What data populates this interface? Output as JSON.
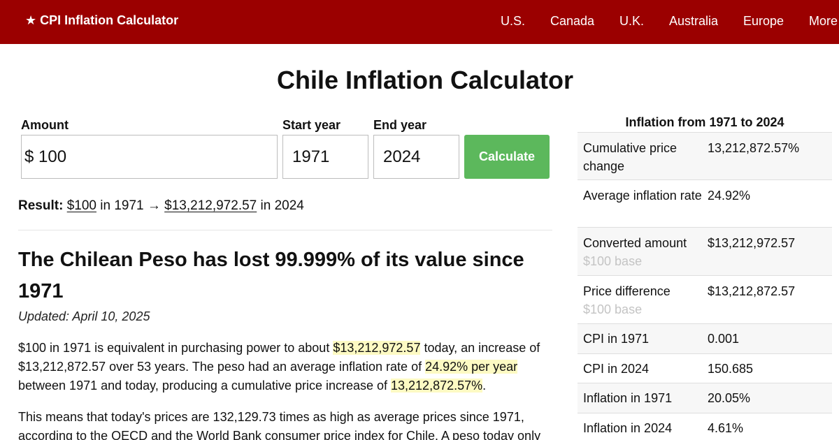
{
  "header": {
    "brand_star": "★",
    "brand": "CPI Inflation Calculator",
    "nav": [
      "U.S.",
      "Canada",
      "U.K.",
      "Australia",
      "Europe",
      "More"
    ]
  },
  "page_title": "Chile Inflation Calculator",
  "form": {
    "amount_label": "Amount",
    "currency_symbol": "$",
    "amount_value": "100",
    "start_label": "Start year",
    "start_value": "1971",
    "end_label": "End year",
    "end_value": "2024",
    "calculate_label": "Calculate"
  },
  "result": {
    "label": "Result:",
    "from_amount": "$100",
    "in_1": "in 1971",
    "arrow": "→",
    "to_amount": "$13,212,972.57",
    "in_2": "in 2024"
  },
  "article": {
    "headline": "The Chilean Peso has lost 99.999% of its value since 1971",
    "updated": "Updated: April 10, 2025",
    "p1": {
      "l1a": "$100 in 1971 is equivalent in purchasing power to about ",
      "l1b": "$13,212,972.57",
      "l1c": " today, an increase of",
      "l2a": "$13,212,872.57 over 53 years. The peso had an average inflation rate of ",
      "l2b": "24.92% per year",
      "l3a": "between 1971 and today, producing a cumulative price increase of ",
      "l3b": "13,212,872.57%",
      "l3c": "."
    },
    "p2": {
      "l1": "This means that today's prices are 132,129.73 times as high as average prices since 1971,",
      "l2": "according to the OECD and the World Bank consumer price index for Chile. A peso today only"
    }
  },
  "sidebar": {
    "title": "Inflation from 1971 to 2024",
    "rows": [
      {
        "key": "Cumulative price change",
        "sub": "",
        "value": "13,212,872.57%"
      },
      {
        "key": "Average inflation rate",
        "sub": "",
        "value": "24.92%"
      },
      {
        "key": "Converted amount",
        "sub": "$100 base",
        "value": "$13,212,972.57"
      },
      {
        "key": "Price difference",
        "sub": "$100 base",
        "value": "$13,212,872.57"
      },
      {
        "key": "CPI in 1971",
        "sub": "",
        "value": "0.001"
      },
      {
        "key": "CPI in 2024",
        "sub": "",
        "value": "150.685"
      },
      {
        "key": "Inflation in 1971",
        "sub": "",
        "value": "20.05%"
      },
      {
        "key": "Inflation in 2024",
        "sub": "",
        "value": "4.61%"
      }
    ]
  },
  "colors": {
    "header_bg": "#9b0000",
    "button_bg": "#5cb85c",
    "highlight": "#fdfac3"
  }
}
